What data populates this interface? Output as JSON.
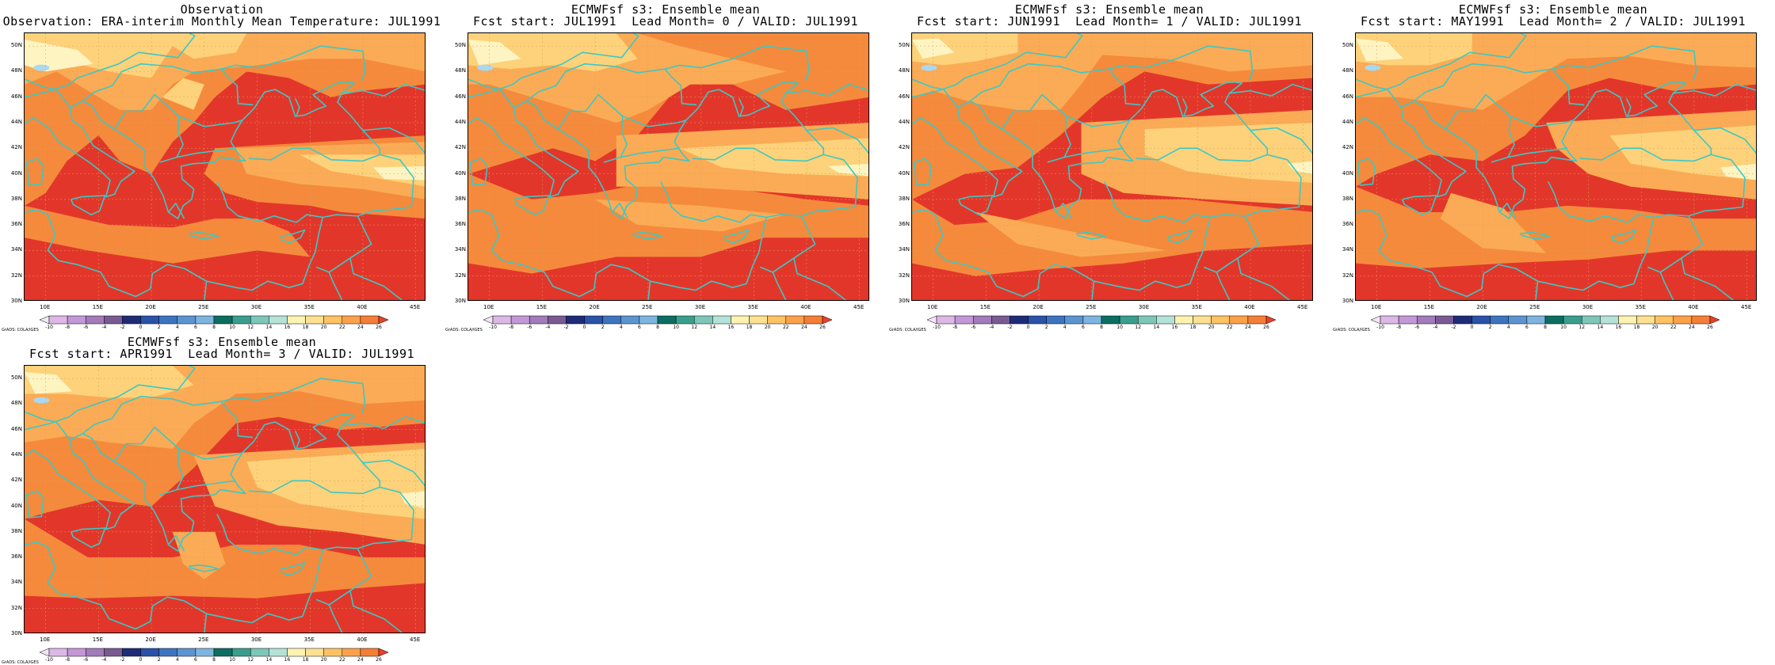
{
  "panels": [
    {
      "title_line1": "Observation",
      "title_line2": "Observation: ERA-interim Monthly Mean Temperature: JUL1991"
    },
    {
      "title_line1": "ECMWFsf s3: Ensemble mean",
      "title_line2": "Fcst start: JUL1991  Lead Month= 0 / VALID: JUL1991"
    },
    {
      "title_line1": "ECMWFsf s3: Ensemble mean",
      "title_line2": "Fcst start: JUN1991  Lead Month= 1 / VALID: JUL1991"
    },
    {
      "title_line1": "ECMWFsf s3: Ensemble mean",
      "title_line2": "Fcst start: MAY1991  Lead Month= 2 / VALID: JUL1991"
    },
    {
      "title_line1": "ECMWFsf s3: Ensemble mean",
      "title_line2": "Fcst start: APR1991  Lead Month= 3 / VALID: JUL1991"
    }
  ],
  "y_ticks": [
    "50N",
    "48N",
    "46N",
    "44N",
    "42N",
    "40N",
    "38N",
    "36N",
    "34N",
    "32N",
    "30N"
  ],
  "x_ticks": [
    "10E",
    "15E",
    "20E",
    "25E",
    "30E",
    "35E",
    "40E",
    "45E"
  ],
  "credit": "GrADS: COLA/IGES",
  "colorbar": {
    "labels": [
      "-10",
      "-8",
      "-6",
      "-4",
      "-2",
      "0",
      "2",
      "4",
      "6",
      "8",
      "10",
      "12",
      "14",
      "16",
      "18",
      "20",
      "22",
      "24",
      "26"
    ],
    "colors": [
      "#f2e6f5",
      "#dcb8e6",
      "#c497d6",
      "#a27bba",
      "#7a5a92",
      "#1e2c78",
      "#2a52a8",
      "#3d74c0",
      "#5c94d0",
      "#7eb4e0",
      "#0b6e60",
      "#3a9e8c",
      "#7cc7b8",
      "#b5e2d6",
      "#fdf3b0",
      "#fde090",
      "#fdc264",
      "#fca14a",
      "#f57e36",
      "#e8402a"
    ]
  },
  "colors": {
    "ocean_hot": "#e3362a",
    "land_warm": "#f58a3c",
    "land_mild": "#fbab55",
    "land_cool": "#fdd27a",
    "land_coolest": "#fef4c2",
    "ice": "#a9d8f0",
    "coast": "#3cc8c4"
  }
}
